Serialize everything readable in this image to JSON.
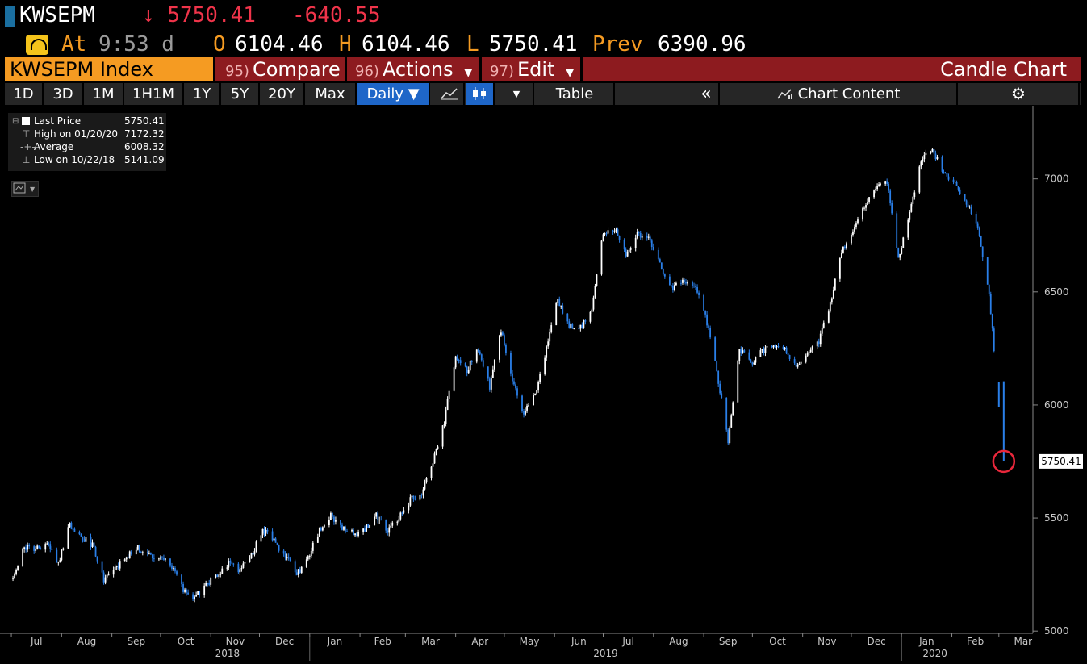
{
  "header": {
    "ticker": "KWSEPM",
    "arrow": "↓",
    "last": "5750.41",
    "change": "-640.55",
    "at_label": "At",
    "time": "9:53 d",
    "o_label": "O",
    "open": "6104.46",
    "h_label": "H",
    "high": "6104.46",
    "l_label": "L",
    "low": "5750.41",
    "prev_label": "Prev",
    "prev": "6390.96"
  },
  "menu": {
    "index_name": "KWSEPM Index",
    "compare_num": "95)",
    "compare": "Compare",
    "actions_num": "96)",
    "actions": "Actions",
    "edit_num": "97)",
    "edit": "Edit",
    "chart_type": "Candle Chart"
  },
  "toolbar": {
    "ranges": [
      "1D",
      "3D",
      "1M",
      "1H1M",
      "1Y",
      "5Y",
      "20Y",
      "Max"
    ],
    "period": "Daily ▼",
    "table": "Table",
    "chart_content": "Chart Content"
  },
  "legend": {
    "last_label": "Last Price",
    "last_value": "5750.41",
    "high_label": "High on 01/20/20",
    "high_value": "7172.32",
    "avg_label": "Average",
    "avg_value": "6008.32",
    "low_label": "Low on 10/22/18",
    "low_value": "5141.09"
  },
  "chart_data": {
    "type": "candlestick",
    "title": "",
    "ylim": [
      4990,
      7320
    ],
    "yticks": [
      5000,
      5500,
      6000,
      6500,
      7000
    ],
    "last_label": "5750.41",
    "months": [
      "Jul",
      "Aug",
      "Sep",
      "Oct",
      "Nov",
      "Dec",
      "Jan",
      "Feb",
      "Mar",
      "Apr",
      "May",
      "Jun",
      "Jul",
      "Aug",
      "Sep",
      "Oct",
      "Nov",
      "Dec",
      "Jan",
      "Feb",
      "Mar"
    ],
    "years": [
      "2018",
      "2019",
      "2020"
    ],
    "path": [
      [
        "2018-07-02",
        5230
      ],
      [
        "2018-07-09",
        5370
      ],
      [
        "2018-07-16",
        5360
      ],
      [
        "2018-07-23",
        5390
      ],
      [
        "2018-07-30",
        5300
      ],
      [
        "2018-08-06",
        5470
      ],
      [
        "2018-08-13",
        5420
      ],
      [
        "2018-08-20",
        5380
      ],
      [
        "2018-08-27",
        5230
      ],
      [
        "2018-09-03",
        5270
      ],
      [
        "2018-09-10",
        5330
      ],
      [
        "2018-09-17",
        5370
      ],
      [
        "2018-09-24",
        5330
      ],
      [
        "2018-10-01",
        5330
      ],
      [
        "2018-10-08",
        5290
      ],
      [
        "2018-10-15",
        5180
      ],
      [
        "2018-10-22",
        5150
      ],
      [
        "2018-10-29",
        5200
      ],
      [
        "2018-11-05",
        5250
      ],
      [
        "2018-11-12",
        5300
      ],
      [
        "2018-11-19",
        5270
      ],
      [
        "2018-11-26",
        5330
      ],
      [
        "2018-12-03",
        5450
      ],
      [
        "2018-12-10",
        5400
      ],
      [
        "2018-12-17",
        5330
      ],
      [
        "2018-12-24",
        5250
      ],
      [
        "2018-12-31",
        5320
      ],
      [
        "2019-01-07",
        5450
      ],
      [
        "2019-01-14",
        5510
      ],
      [
        "2019-01-21",
        5460
      ],
      [
        "2019-01-28",
        5430
      ],
      [
        "2019-02-04",
        5450
      ],
      [
        "2019-02-11",
        5510
      ],
      [
        "2019-02-18",
        5440
      ],
      [
        "2019-02-25",
        5500
      ],
      [
        "2019-03-04",
        5580
      ],
      [
        "2019-03-11",
        5610
      ],
      [
        "2019-03-18",
        5750
      ],
      [
        "2019-03-25",
        5930
      ],
      [
        "2019-04-01",
        6220
      ],
      [
        "2019-04-08",
        6150
      ],
      [
        "2019-04-15",
        6250
      ],
      [
        "2019-04-22",
        6080
      ],
      [
        "2019-04-29",
        6330
      ],
      [
        "2019-05-06",
        6100
      ],
      [
        "2019-05-13",
        5960
      ],
      [
        "2019-05-20",
        6050
      ],
      [
        "2019-05-27",
        6250
      ],
      [
        "2019-06-03",
        6470
      ],
      [
        "2019-06-10",
        6350
      ],
      [
        "2019-06-17",
        6340
      ],
      [
        "2019-06-24",
        6430
      ],
      [
        "2019-07-01",
        6760
      ],
      [
        "2019-07-08",
        6780
      ],
      [
        "2019-07-15",
        6660
      ],
      [
        "2019-07-22",
        6750
      ],
      [
        "2019-07-29",
        6730
      ],
      [
        "2019-08-05",
        6620
      ],
      [
        "2019-08-12",
        6520
      ],
      [
        "2019-08-19",
        6540
      ],
      [
        "2019-08-26",
        6530
      ],
      [
        "2019-09-02",
        6400
      ],
      [
        "2019-09-09",
        6150
      ],
      [
        "2019-09-16",
        5840
      ],
      [
        "2019-09-23",
        6250
      ],
      [
        "2019-09-30",
        6180
      ],
      [
        "2019-10-07",
        6240
      ],
      [
        "2019-10-14",
        6270
      ],
      [
        "2019-10-21",
        6250
      ],
      [
        "2019-10-28",
        6160
      ],
      [
        "2019-11-04",
        6230
      ],
      [
        "2019-11-11",
        6280
      ],
      [
        "2019-11-18",
        6450
      ],
      [
        "2019-11-25",
        6680
      ],
      [
        "2019-12-02",
        6770
      ],
      [
        "2019-12-09",
        6870
      ],
      [
        "2019-12-16",
        6960
      ],
      [
        "2019-12-23",
        6990
      ],
      [
        "2019-12-30",
        6650
      ],
      [
        "2020-01-06",
        6850
      ],
      [
        "2020-01-13",
        7080
      ],
      [
        "2020-01-20",
        7130
      ],
      [
        "2020-01-27",
        7030
      ],
      [
        "2020-02-03",
        6980
      ],
      [
        "2020-02-10",
        6900
      ],
      [
        "2020-02-17",
        6780
      ],
      [
        "2020-02-24",
        6500
      ],
      [
        "2020-03-01",
        6000
      ],
      [
        "2020-03-02",
        5750.41
      ]
    ],
    "high": {
      "date": "2020-01-20",
      "value": 7172.32
    },
    "low": {
      "date": "2018-10-22",
      "value": 5141.09
    },
    "average": 6008.32,
    "last": 5750.41
  },
  "colors": {
    "up": "#ffffff",
    "down": "#2a7fe8",
    "marker": "#e8273b",
    "axis": "#c8c8c8"
  }
}
